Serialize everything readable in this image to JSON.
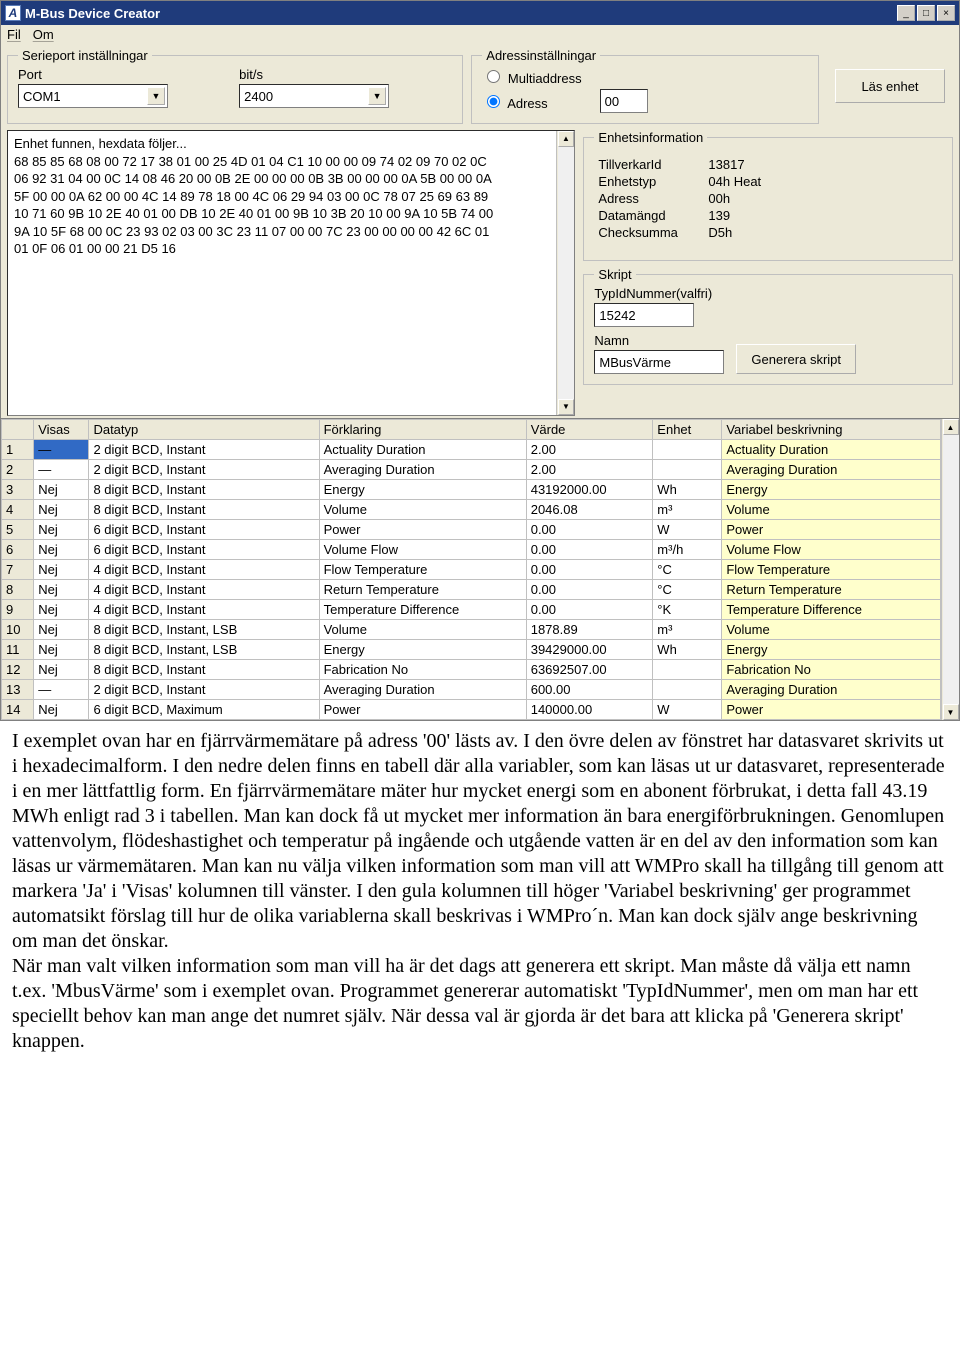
{
  "window": {
    "title": "M-Bus Device Creator"
  },
  "menu": {
    "fil": "Fil",
    "om": "Om"
  },
  "serial": {
    "legend": "Serieport inställningar",
    "port_label": "Port",
    "bits_label": "bit/s",
    "port_value": "COM1",
    "bits_value": "2400"
  },
  "address": {
    "legend": "Adressinställningar",
    "multi_label": "Multiaddress",
    "adress_label": "Adress",
    "adress_value": "00"
  },
  "read_btn": "Läs enhet",
  "hex": {
    "line0": "Enhet funnen, hexdata följer...",
    "line1": "68 85 85 68 08 00 72 17 38 01 00 25 4D 01 04 C1 10 00 00 09 74 02 09 70 02 0C",
    "line2": "06 92 31 04 00 0C 14 08 46 20 00 0B 2E 00 00 00 0B 3B 00 00 00 0A 5B 00 00 0A",
    "line3": "5F 00 00 0A 62 00 00 4C 14 89 78 18 00 4C 06 29 94 03 00 0C 78 07 25 69 63 89",
    "line4": "10 71 60 9B 10 2E 40 01 00 DB 10 2E 40 01 00 9B 10 3B 20 10 00 9A 10 5B 74 00",
    "line5": "9A 10 5F 68 00 0C 23 93 02 03 00 3C 23 11 07 00 00 7C 23 00 00 00 00 42 6C 01",
    "line6": "01 0F 06 01 00 00 21 D5 16"
  },
  "unitinfo": {
    "legend": "Enhetsinformation",
    "k1": "TillverkarId",
    "v1": "13817",
    "k2": "Enhetstyp",
    "v2": "04h Heat",
    "k3": "Adress",
    "v3": "00h",
    "k4": "Datamängd",
    "v4": "139",
    "k5": "Checksumma",
    "v5": "D5h"
  },
  "skript": {
    "legend": "Skript",
    "typid_label": "TypIdNummer(valfri)",
    "typid_value": "15242",
    "namn_label": "Namn",
    "namn_value": "MBusVärme",
    "gen_btn": "Generera skript"
  },
  "cols": {
    "c0": "",
    "c1": "Visas",
    "c2": "Datatyp",
    "c3": "Förklaring",
    "c4": "Värde",
    "c5": "Enhet",
    "c6": "Variabel beskrivning"
  },
  "rows": [
    {
      "n": "1",
      "visas": "—",
      "d": "2 digit BCD, Instant",
      "f": "Actuality Duration",
      "v": "2.00",
      "e": "",
      "b": "Actuality Duration"
    },
    {
      "n": "2",
      "visas": "—",
      "d": "2 digit BCD, Instant",
      "f": "Averaging Duration",
      "v": "2.00",
      "e": "",
      "b": "Averaging Duration"
    },
    {
      "n": "3",
      "visas": "Nej",
      "d": "8 digit BCD, Instant",
      "f": "Energy",
      "v": "43192000.00",
      "e": "Wh",
      "b": "Energy"
    },
    {
      "n": "4",
      "visas": "Nej",
      "d": "8 digit BCD, Instant",
      "f": "Volume",
      "v": "2046.08",
      "e": "m³",
      "b": "Volume"
    },
    {
      "n": "5",
      "visas": "Nej",
      "d": "6 digit BCD, Instant",
      "f": "Power",
      "v": "0.00",
      "e": "W",
      "b": "Power"
    },
    {
      "n": "6",
      "visas": "Nej",
      "d": "6 digit BCD, Instant",
      "f": "Volume Flow",
      "v": "0.00",
      "e": "m³/h",
      "b": "Volume Flow"
    },
    {
      "n": "7",
      "visas": "Nej",
      "d": "4 digit BCD, Instant",
      "f": "Flow Temperature",
      "v": "0.00",
      "e": "°C",
      "b": "Flow Temperature"
    },
    {
      "n": "8",
      "visas": "Nej",
      "d": "4 digit BCD, Instant",
      "f": "Return Temperature",
      "v": "0.00",
      "e": "°C",
      "b": "Return Temperature"
    },
    {
      "n": "9",
      "visas": "Nej",
      "d": "4 digit BCD, Instant",
      "f": "Temperature Difference",
      "v": "0.00",
      "e": "°K",
      "b": "Temperature Difference"
    },
    {
      "n": "10",
      "visas": "Nej",
      "d": "8 digit BCD, Instant, LSB",
      "f": "Volume",
      "v": "1878.89",
      "e": "m³",
      "b": "Volume"
    },
    {
      "n": "11",
      "visas": "Nej",
      "d": "8 digit BCD, Instant, LSB",
      "f": "Energy",
      "v": "39429000.00",
      "e": "Wh",
      "b": "Energy"
    },
    {
      "n": "12",
      "visas": "Nej",
      "d": "8 digit BCD, Instant",
      "f": "Fabrication No",
      "v": "63692507.00",
      "e": "",
      "b": "Fabrication No"
    },
    {
      "n": "13",
      "visas": "—",
      "d": "2 digit BCD, Instant",
      "f": "Averaging Duration",
      "v": "600.00",
      "e": "",
      "b": "Averaging Duration"
    },
    {
      "n": "14",
      "visas": "Nej",
      "d": "6 digit BCD, Maximum",
      "f": "Power",
      "v": "140000.00",
      "e": "W",
      "b": "Power"
    }
  ],
  "doc": {
    "p1": "I exemplet ovan har en fjärrvärmemätare på adress '00' lästs av. I den övre delen av fönstret har datasvaret skrivits ut i hexadecimalform. I den nedre delen finns en tabell där alla variabler, som kan läsas ut ur datasvaret, representerade i en mer lättfattlig form. En fjärrvärmemätare mäter hur mycket energi som en abonent förbrukat, i detta fall 43.19 MWh enligt rad 3 i tabellen. Man kan dock få ut mycket mer information än bara energiförbrukningen. Genomlupen vattenvolym, flödeshastighet och temperatur på ingående och utgående vatten är en del av den information som kan läsas ur värmemätaren. Man kan nu välja vilken information som man vill att WMPro skall ha tillgång till genom att markera 'Ja' i 'Visas' kolumnen till vänster. I den gula kolumnen till höger 'Variabel beskrivning' ger programmet automatsikt förslag till hur de olika variablerna skall beskrivas i WMPro´n. Man kan dock själv ange beskrivning om man det önskar.",
    "p2": "När man valt vilken information som man vill ha är det dags att generera ett skript. Man måste då välja ett namn t.ex. 'MbusVärme' som i exemplet ovan. Programmet genererar automatiskt 'TypIdNummer', men om man har ett speciellt behov kan man ange det numret själv. När dessa val är gjorda är det bara att klicka på 'Generera skript' knappen."
  }
}
